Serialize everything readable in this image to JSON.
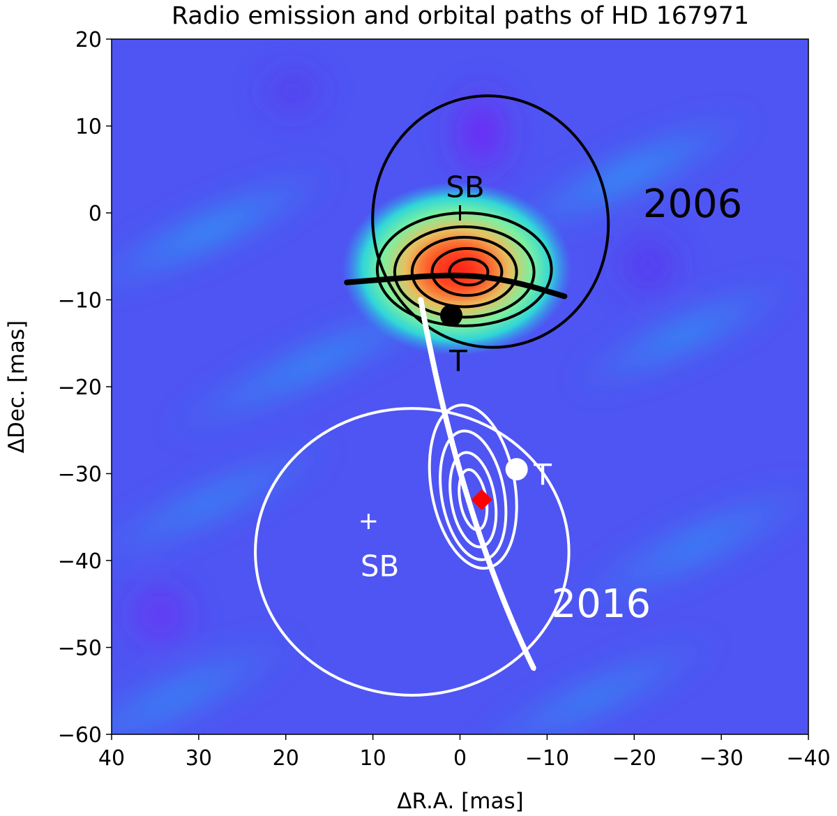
{
  "chart_data": {
    "type": "image",
    "title": "Radio emission and orbital paths of HD 167971",
    "xlabel": "ΔR.A. [mas]",
    "ylabel": "ΔDec. [mas]",
    "xlim": [
      40,
      -40
    ],
    "ylim": [
      -60,
      20
    ],
    "xticks": [
      40,
      30,
      20,
      10,
      0,
      -10,
      -20,
      -30,
      -40
    ],
    "yticks": [
      20,
      10,
      0,
      -10,
      -20,
      -30,
      -40,
      -50,
      -60
    ],
    "xtick_labels": [
      "40",
      "30",
      "20",
      "10",
      "0",
      "−10",
      "−20",
      "−30",
      "−40"
    ],
    "ytick_labels": [
      "20",
      "10",
      "0",
      "−10",
      "−20",
      "−30",
      "−40",
      "−50",
      "−60"
    ],
    "colormap": "rainbow",
    "background_color": "#4f55f2",
    "epochs": [
      {
        "year": "2006",
        "color": "#000000",
        "label_pos": [
          -21,
          -0.5
        ],
        "emission_peak": [
          -0.5,
          -7
        ],
        "contours": [
          {
            "cx": -0.5,
            "cy": -6.5,
            "rx": 10,
            "ry": 6.5
          },
          {
            "cx": -0.5,
            "cy": -6.8,
            "rx": 8,
            "ry": 5.2
          },
          {
            "cx": -0.5,
            "cy": -6.8,
            "rx": 6,
            "ry": 4
          },
          {
            "cx": -0.8,
            "cy": -6.8,
            "rx": 4,
            "ry": 2.7
          },
          {
            "cx": -1.0,
            "cy": -6.8,
            "rx": 2.2,
            "ry": 1.5
          }
        ],
        "orbit": {
          "cx": -3.5,
          "cy": -1.0,
          "rx": 13.5,
          "ry": 14.5,
          "rot": -10
        },
        "arc": [
          [
            13,
            -8
          ],
          [
            8,
            -7.6
          ],
          [
            3,
            -7.2
          ],
          [
            -2,
            -7.2
          ],
          [
            -7,
            -8.1
          ],
          [
            -12,
            -9.6
          ]
        ],
        "track": [
          [
            4.5,
            -10
          ],
          [
            0,
            -35
          ],
          [
            -8.5,
            -52.5
          ]
        ],
        "sb_marker": [
          0,
          0
        ],
        "sb_label": "SB",
        "sb_label_pos": [
          -0.6,
          1.8
        ],
        "t_marker": [
          1,
          -11.8
        ],
        "t_label": "T",
        "t_label_pos": [
          0.2,
          -18.2
        ]
      },
      {
        "year": "2016",
        "color": "#ffffff",
        "label_pos": [
          -10.5,
          -46.5
        ],
        "contours": [
          {
            "cx": -1.5,
            "cy": -31.5,
            "rx": 4.8,
            "ry": 9.5,
            "rot": -10
          },
          {
            "cx": -1.5,
            "cy": -32.5,
            "rx": 3.6,
            "ry": 7.5,
            "rot": -10
          },
          {
            "cx": -1.5,
            "cy": -33,
            "rx": 2.5,
            "ry": 5.5,
            "rot": -10
          },
          {
            "cx": -1.5,
            "cy": -33,
            "rx": 1.5,
            "ry": 3.5,
            "rot": -10
          }
        ],
        "orbit": {
          "cx": 5.5,
          "cy": -39.0,
          "rx": 18.0,
          "ry": 16.5,
          "rot": 0
        },
        "sb_marker": [
          10.5,
          -35.5
        ],
        "sb_label": "SB",
        "sb_label_pos": [
          9.2,
          -41.8
        ],
        "t_marker": [
          -6.5,
          -29.5
        ],
        "t_label": "T",
        "t_label_pos": [
          -9.5,
          -31.3
        ]
      }
    ],
    "red_marker": [
      -2.5,
      -33
    ]
  }
}
